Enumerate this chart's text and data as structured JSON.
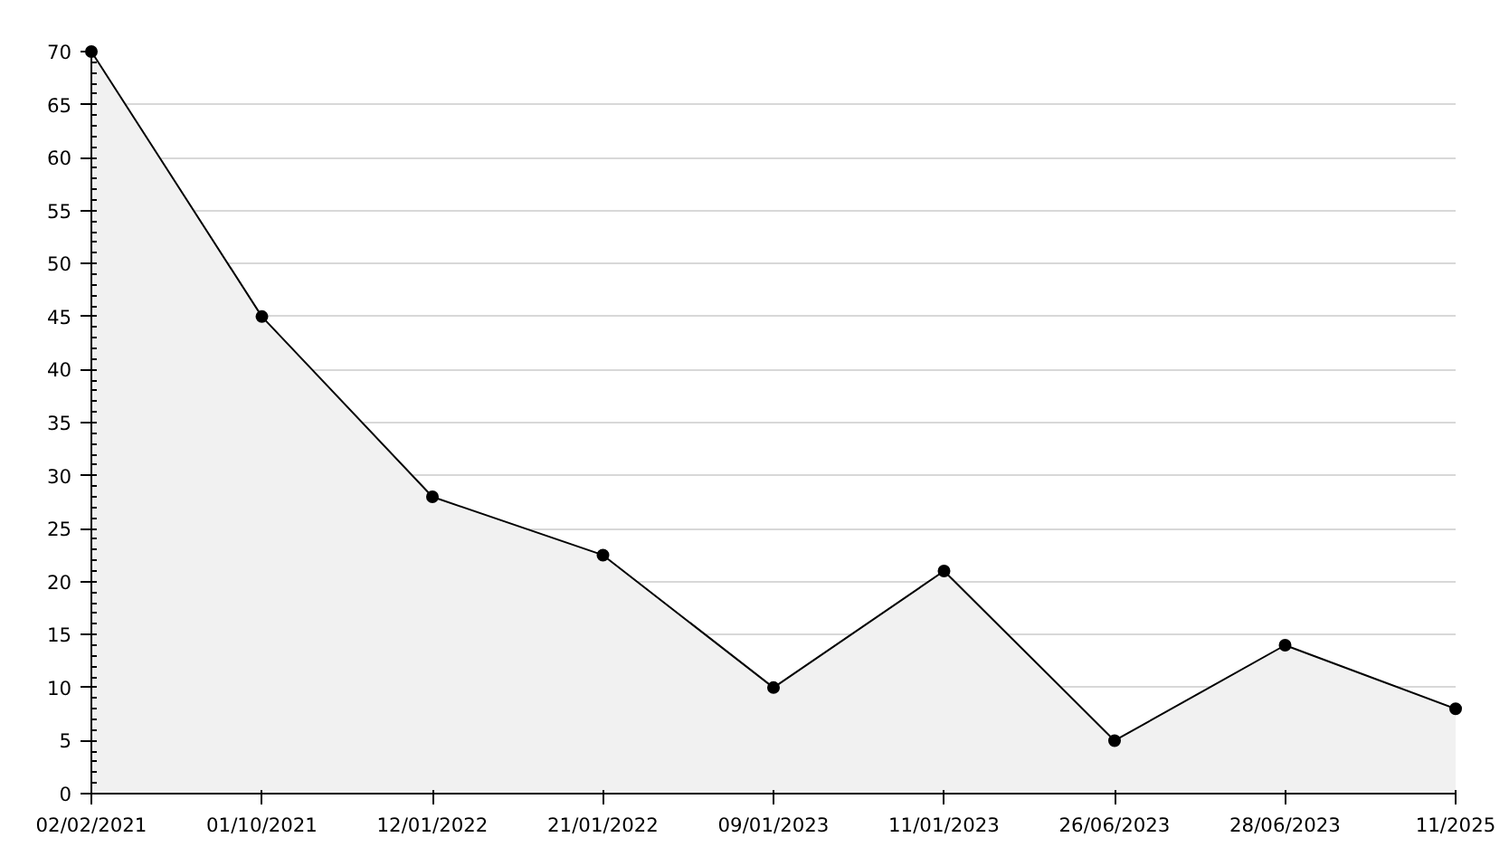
{
  "chart_data": {
    "type": "area",
    "categories": [
      "02/02/2021",
      "01/10/2021",
      "12/01/2022",
      "21/01/2022",
      "09/01/2023",
      "11/01/2023",
      "26/06/2023",
      "28/06/2023",
      "11/2025"
    ],
    "series": [
      {
        "color": "#000000",
        "values": [
          70,
          45,
          28,
          22.5,
          10,
          21,
          5,
          14,
          8
        ]
      }
    ],
    "ylim": [
      0,
      70
    ],
    "yticks": [
      0,
      5,
      10,
      15,
      20,
      25,
      30,
      35,
      40,
      45,
      50,
      55,
      60,
      65,
      70
    ],
    "grid": "y",
    "marker": "circle",
    "line_style": "solid"
  }
}
